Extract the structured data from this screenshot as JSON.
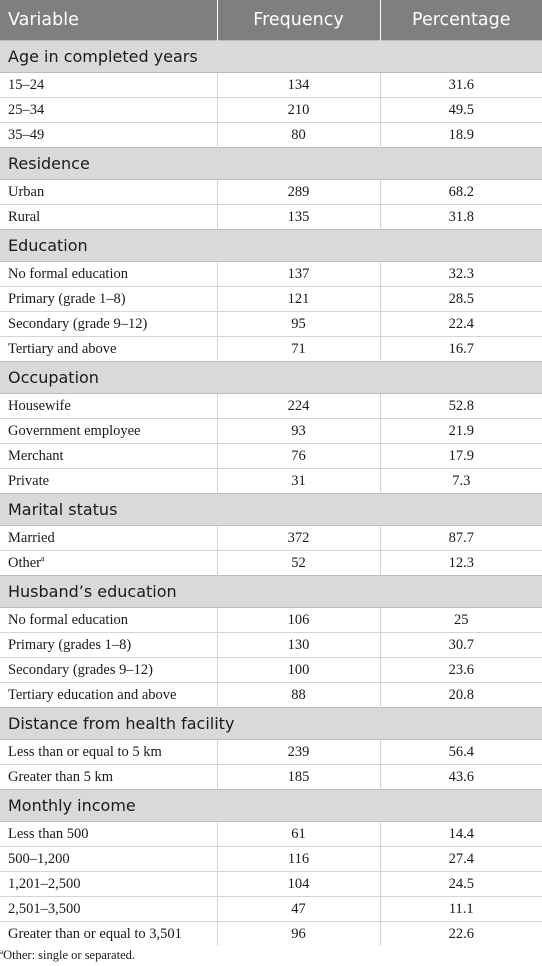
{
  "header": {
    "variable": "Variable",
    "frequency": "Frequency",
    "percentage": "Percentage"
  },
  "sections": [
    {
      "title": "Age in completed years",
      "rows": [
        {
          "label": "15–24",
          "frequency": "134",
          "percentage": "31.6"
        },
        {
          "label": "25–34",
          "frequency": "210",
          "percentage": "49.5"
        },
        {
          "label": "35–49",
          "frequency": "80",
          "percentage": "18.9"
        }
      ]
    },
    {
      "title": "Residence",
      "rows": [
        {
          "label": "Urban",
          "frequency": "289",
          "percentage": "68.2"
        },
        {
          "label": "Rural",
          "frequency": "135",
          "percentage": "31.8"
        }
      ]
    },
    {
      "title": "Education",
      "rows": [
        {
          "label": "No formal education",
          "frequency": "137",
          "percentage": "32.3"
        },
        {
          "label": "Primary (grade 1–8)",
          "frequency": "121",
          "percentage": "28.5"
        },
        {
          "label": "Secondary (grade 9–12)",
          "frequency": "95",
          "percentage": "22.4"
        },
        {
          "label": "Tertiary and above",
          "frequency": "71",
          "percentage": "16.7"
        }
      ]
    },
    {
      "title": "Occupation",
      "rows": [
        {
          "label": "Housewife",
          "frequency": "224",
          "percentage": "52.8"
        },
        {
          "label": "Government employee",
          "frequency": "93",
          "percentage": "21.9"
        },
        {
          "label": "Merchant",
          "frequency": "76",
          "percentage": "17.9"
        },
        {
          "label": "Private",
          "frequency": "31",
          "percentage": "7.3"
        }
      ]
    },
    {
      "title": "Marital status",
      "rows": [
        {
          "label": "Married",
          "frequency": "372",
          "percentage": "87.7"
        },
        {
          "label": "Other",
          "sup": "a",
          "frequency": "52",
          "percentage": "12.3"
        }
      ]
    },
    {
      "title": "Husband’s education",
      "rows": [
        {
          "label": "No formal education",
          "frequency": "106",
          "percentage": "25"
        },
        {
          "label": "Primary (grades 1–8)",
          "frequency": "130",
          "percentage": "30.7"
        },
        {
          "label": "Secondary (grades 9–12)",
          "frequency": "100",
          "percentage": "23.6"
        },
        {
          "label": "Tertiary education and above",
          "frequency": "88",
          "percentage": "20.8"
        }
      ]
    },
    {
      "title": "Distance from health facility",
      "rows": [
        {
          "label": "Less than or equal to 5 km",
          "frequency": "239",
          "percentage": "56.4"
        },
        {
          "label": "Greater than 5 km",
          "frequency": "185",
          "percentage": "43.6"
        }
      ]
    },
    {
      "title": "Monthly income",
      "rows": [
        {
          "label": "Less than 500",
          "frequency": "61",
          "percentage": "14.4"
        },
        {
          "label": "500–1,200",
          "frequency": "116",
          "percentage": "27.4"
        },
        {
          "label": "1,201–2,500",
          "frequency": "104",
          "percentage": "24.5"
        },
        {
          "label": "2,501–3,500",
          "frequency": "47",
          "percentage": "11.1"
        },
        {
          "label": "Greater than or equal to 3,501",
          "frequency": "96",
          "percentage": "22.6"
        }
      ]
    }
  ],
  "footnote": {
    "mark": "a",
    "text": "Other: single or separated."
  }
}
